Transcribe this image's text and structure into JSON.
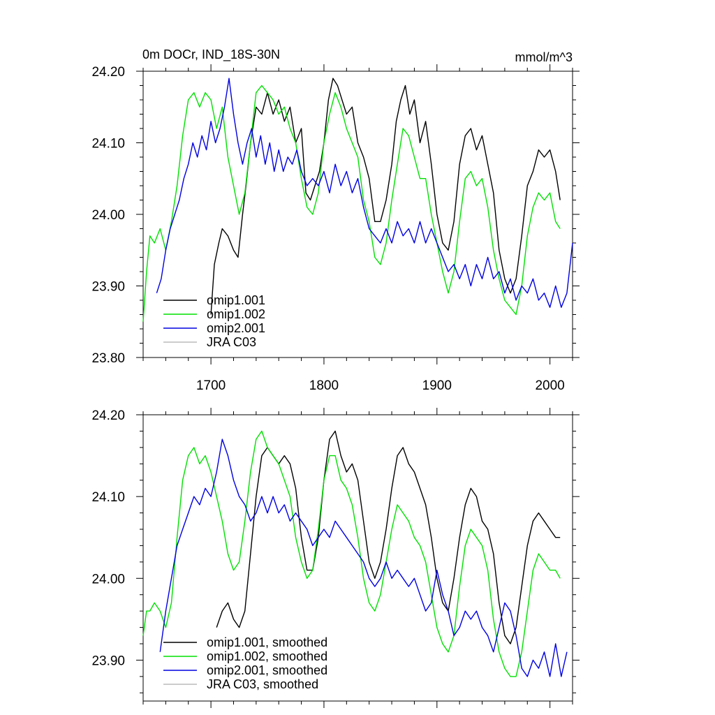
{
  "chart_data": [
    {
      "type": "line",
      "title_left": "0m DOCr, IND_18S-30N",
      "title_right": "mmol/m^3",
      "xlim": [
        1640,
        2020
      ],
      "ylim": [
        23.8,
        24.2
      ],
      "x_ticks": [
        1700,
        1800,
        1900,
        2000
      ],
      "x_tick_labels": [
        "1700",
        "1800",
        "1900",
        "2000"
      ],
      "y_ticks": [
        23.8,
        23.9,
        24.0,
        24.1,
        24.2
      ],
      "y_tick_labels": [
        "23.80",
        "23.90",
        "24.00",
        "24.10",
        "24.20"
      ],
      "legend": [
        "omip1.001",
        "omip1.002",
        "omip2.001",
        "JRA C03"
      ],
      "series": [
        {
          "name": "omip1.001",
          "color": "#000000",
          "x": [
            1700,
            1703,
            1707,
            1710,
            1715,
            1720,
            1724,
            1728,
            1731,
            1735,
            1740,
            1745,
            1750,
            1755,
            1760,
            1765,
            1770,
            1775,
            1780,
            1784,
            1788,
            1792,
            1796,
            1800,
            1804,
            1808,
            1812,
            1816,
            1820,
            1825,
            1830,
            1835,
            1840,
            1845,
            1850,
            1855,
            1860,
            1864,
            1868,
            1872,
            1876,
            1880,
            1885,
            1890,
            1895,
            1900,
            1905,
            1910,
            1915,
            1920,
            1925,
            1930,
            1935,
            1940,
            1945,
            1950,
            1955,
            1960,
            1965,
            1970,
            1975,
            1980,
            1985,
            1990,
            1995,
            2000,
            2005,
            2009
          ],
          "y": [
            23.86,
            23.93,
            23.96,
            23.98,
            23.97,
            23.95,
            23.94,
            24.0,
            24.04,
            24.1,
            24.15,
            24.14,
            24.17,
            24.14,
            24.16,
            24.13,
            24.15,
            24.1,
            24.12,
            24.03,
            24.02,
            24.04,
            24.06,
            24.1,
            24.16,
            24.19,
            24.18,
            24.16,
            24.14,
            24.15,
            24.1,
            24.08,
            24.05,
            23.99,
            23.99,
            24.02,
            24.07,
            24.13,
            24.16,
            24.18,
            24.14,
            24.16,
            24.1,
            24.13,
            24.07,
            24.0,
            23.96,
            23.95,
            23.99,
            24.07,
            24.11,
            24.12,
            24.09,
            24.11,
            24.07,
            24.03,
            23.95,
            23.91,
            23.89,
            23.91,
            23.97,
            24.04,
            24.06,
            24.09,
            24.08,
            24.09,
            24.06,
            24.02
          ]
        },
        {
          "name": "omip1.002",
          "color": "#00e000",
          "x": [
            1640,
            1643,
            1646,
            1650,
            1655,
            1660,
            1665,
            1670,
            1675,
            1680,
            1685,
            1690,
            1695,
            1700,
            1705,
            1710,
            1715,
            1720,
            1725,
            1730,
            1735,
            1740,
            1745,
            1750,
            1755,
            1760,
            1765,
            1770,
            1775,
            1780,
            1785,
            1790,
            1795,
            1800,
            1805,
            1810,
            1815,
            1820,
            1825,
            1830,
            1835,
            1840,
            1845,
            1850,
            1855,
            1860,
            1865,
            1870,
            1875,
            1880,
            1885,
            1890,
            1895,
            1900,
            1905,
            1910,
            1915,
            1920,
            1925,
            1930,
            1935,
            1940,
            1945,
            1950,
            1955,
            1960,
            1965,
            1970,
            1975,
            1980,
            1985,
            1990,
            1995,
            2000,
            2005,
            2009
          ],
          "y": [
            23.85,
            23.92,
            23.97,
            23.96,
            23.98,
            23.95,
            23.99,
            24.04,
            24.11,
            24.16,
            24.17,
            24.15,
            24.17,
            24.16,
            24.12,
            24.15,
            24.08,
            24.04,
            24.0,
            24.03,
            24.1,
            24.17,
            24.18,
            24.17,
            24.16,
            24.14,
            24.15,
            24.12,
            24.1,
            24.05,
            24.01,
            24.0,
            24.03,
            24.1,
            24.14,
            24.17,
            24.15,
            24.12,
            24.1,
            24.08,
            24.02,
            23.99,
            23.94,
            23.93,
            23.96,
            24.02,
            24.07,
            24.12,
            24.11,
            24.08,
            24.05,
            24.05,
            24.0,
            23.96,
            23.92,
            23.89,
            23.92,
            23.99,
            24.05,
            24.06,
            24.04,
            24.05,
            24.01,
            23.95,
            23.91,
            23.88,
            23.87,
            23.86,
            23.9,
            23.97,
            24.01,
            24.03,
            24.02,
            24.03,
            23.99,
            23.98
          ]
        },
        {
          "name": "omip2.001",
          "color": "#0000e0",
          "x": [
            1652,
            1656,
            1660,
            1664,
            1668,
            1672,
            1676,
            1680,
            1684,
            1688,
            1692,
            1696,
            1700,
            1704,
            1708,
            1712,
            1716,
            1720,
            1724,
            1728,
            1732,
            1736,
            1740,
            1744,
            1748,
            1752,
            1756,
            1760,
            1764,
            1768,
            1772,
            1776,
            1780,
            1785,
            1790,
            1795,
            1800,
            1805,
            1810,
            1815,
            1820,
            1825,
            1830,
            1835,
            1840,
            1845,
            1850,
            1855,
            1860,
            1865,
            1870,
            1875,
            1880,
            1885,
            1890,
            1895,
            1900,
            1905,
            1910,
            1915,
            1920,
            1925,
            1930,
            1935,
            1940,
            1945,
            1950,
            1955,
            1960,
            1965,
            1970,
            1975,
            1980,
            1985,
            1990,
            1995,
            2000,
            2005,
            2010,
            2015,
            2020
          ],
          "y": [
            23.89,
            23.91,
            23.95,
            23.98,
            24.0,
            24.02,
            24.05,
            24.07,
            24.1,
            24.08,
            24.11,
            24.09,
            24.13,
            24.1,
            24.12,
            24.15,
            24.19,
            24.14,
            24.1,
            24.07,
            24.1,
            24.12,
            24.08,
            24.11,
            24.07,
            24.1,
            24.06,
            24.09,
            24.06,
            24.08,
            24.07,
            24.09,
            24.06,
            24.04,
            24.05,
            24.04,
            24.06,
            24.03,
            24.07,
            24.04,
            24.06,
            24.03,
            24.05,
            24.01,
            23.98,
            23.97,
            23.96,
            23.98,
            23.96,
            23.99,
            23.97,
            23.98,
            23.96,
            23.99,
            23.96,
            23.98,
            23.96,
            23.94,
            23.92,
            23.93,
            23.91,
            23.93,
            23.9,
            23.93,
            23.91,
            23.94,
            23.91,
            23.92,
            23.89,
            23.91,
            23.88,
            23.9,
            23.89,
            23.91,
            23.88,
            23.89,
            23.87,
            23.9,
            23.87,
            23.89,
            23.96
          ]
        },
        {
          "name": "JRA C03",
          "color": "#bbbbbb",
          "x": [],
          "y": []
        }
      ]
    },
    {
      "type": "line",
      "xlim": [
        1640,
        2020
      ],
      "ylim": [
        23.85,
        24.2
      ],
      "x_ticks": [
        1700,
        1800,
        1900,
        2000
      ],
      "y_ticks": [
        23.9,
        24.0,
        24.1,
        24.2
      ],
      "y_tick_labels": [
        "23.90",
        "24.00",
        "24.10",
        "24.20"
      ],
      "legend": [
        "omip1.001, smoothed",
        "omip1.002, smoothed",
        "omip2.001, smoothed",
        "JRA C03, smoothed"
      ],
      "series": [
        {
          "name": "omip1.001, smoothed",
          "color": "#000000",
          "x": [
            1705,
            1710,
            1715,
            1720,
            1725,
            1730,
            1735,
            1740,
            1745,
            1750,
            1755,
            1760,
            1765,
            1770,
            1775,
            1780,
            1785,
            1790,
            1795,
            1800,
            1805,
            1810,
            1815,
            1820,
            1825,
            1830,
            1835,
            1840,
            1845,
            1850,
            1855,
            1860,
            1865,
            1870,
            1875,
            1880,
            1885,
            1890,
            1895,
            1900,
            1905,
            1910,
            1915,
            1920,
            1925,
            1930,
            1935,
            1940,
            1945,
            1950,
            1955,
            1960,
            1965,
            1970,
            1975,
            1980,
            1985,
            1990,
            1995,
            2000,
            2005,
            2009
          ],
          "y": [
            23.94,
            23.96,
            23.97,
            23.95,
            23.94,
            23.96,
            24.03,
            24.1,
            24.15,
            24.16,
            24.15,
            24.14,
            24.15,
            24.14,
            24.11,
            24.05,
            24.01,
            24.01,
            24.05,
            24.12,
            24.17,
            24.18,
            24.15,
            24.13,
            24.14,
            24.12,
            24.07,
            24.02,
            24.0,
            24.02,
            24.06,
            24.11,
            24.15,
            24.16,
            24.14,
            24.13,
            24.11,
            24.09,
            24.05,
            24.0,
            23.97,
            23.96,
            24.0,
            24.05,
            24.09,
            24.11,
            24.1,
            24.07,
            24.06,
            24.03,
            23.97,
            23.93,
            23.92,
            23.94,
            23.99,
            24.04,
            24.07,
            24.08,
            24.07,
            24.06,
            24.05,
            24.05
          ]
        },
        {
          "name": "omip1.002, smoothed",
          "color": "#00e000",
          "x": [
            1640,
            1643,
            1646,
            1650,
            1655,
            1660,
            1665,
            1670,
            1675,
            1680,
            1685,
            1690,
            1695,
            1700,
            1705,
            1710,
            1715,
            1720,
            1725,
            1730,
            1735,
            1740,
            1745,
            1750,
            1755,
            1760,
            1765,
            1770,
            1775,
            1780,
            1785,
            1790,
            1795,
            1800,
            1805,
            1810,
            1815,
            1820,
            1825,
            1830,
            1835,
            1840,
            1845,
            1850,
            1855,
            1860,
            1865,
            1870,
            1875,
            1880,
            1885,
            1890,
            1895,
            1900,
            1905,
            1910,
            1915,
            1920,
            1925,
            1930,
            1935,
            1940,
            1945,
            1950,
            1955,
            1960,
            1965,
            1970,
            1975,
            1980,
            1985,
            1990,
            1995,
            2000,
            2005,
            2009
          ],
          "y": [
            23.93,
            23.96,
            23.96,
            23.97,
            23.96,
            23.94,
            23.97,
            24.05,
            24.12,
            24.15,
            24.16,
            24.14,
            24.15,
            24.13,
            24.1,
            24.07,
            24.03,
            24.01,
            24.02,
            24.07,
            24.13,
            24.17,
            24.18,
            24.16,
            24.15,
            24.14,
            24.12,
            24.1,
            24.05,
            24.02,
            24.0,
            24.01,
            24.06,
            24.12,
            24.15,
            24.15,
            24.12,
            24.11,
            24.09,
            24.05,
            24.0,
            23.97,
            23.96,
            23.98,
            24.02,
            24.06,
            24.09,
            24.08,
            24.07,
            24.05,
            24.04,
            24.02,
            23.98,
            23.94,
            23.92,
            23.91,
            23.93,
            23.99,
            24.04,
            24.06,
            24.05,
            24.04,
            24.01,
            23.95,
            23.91,
            23.89,
            23.88,
            23.88,
            23.91,
            23.96,
            24.01,
            24.03,
            24.02,
            24.01,
            24.01,
            24.0
          ]
        },
        {
          "name": "omip2.001, smoothed",
          "color": "#0000e0",
          "x": [
            1655,
            1660,
            1665,
            1670,
            1675,
            1680,
            1685,
            1690,
            1695,
            1700,
            1705,
            1710,
            1715,
            1720,
            1725,
            1730,
            1735,
            1740,
            1745,
            1750,
            1755,
            1760,
            1765,
            1770,
            1775,
            1780,
            1785,
            1790,
            1795,
            1800,
            1805,
            1810,
            1815,
            1820,
            1825,
            1830,
            1835,
            1840,
            1845,
            1850,
            1855,
            1860,
            1865,
            1870,
            1875,
            1880,
            1885,
            1890,
            1895,
            1900,
            1905,
            1910,
            1915,
            1920,
            1925,
            1930,
            1935,
            1940,
            1945,
            1950,
            1955,
            1960,
            1965,
            1970,
            1975,
            1980,
            1985,
            1990,
            1995,
            2000,
            2005,
            2010,
            2015
          ],
          "y": [
            23.91,
            23.96,
            24.0,
            24.04,
            24.06,
            24.08,
            24.1,
            24.09,
            24.11,
            24.1,
            24.13,
            24.17,
            24.15,
            24.12,
            24.1,
            24.09,
            24.07,
            24.08,
            24.1,
            24.08,
            24.1,
            24.08,
            24.09,
            24.07,
            24.08,
            24.07,
            24.06,
            24.04,
            24.05,
            24.06,
            24.05,
            24.07,
            24.06,
            24.05,
            24.04,
            24.03,
            24.02,
            24.0,
            23.99,
            24.0,
            24.02,
            24.0,
            24.01,
            24.0,
            23.99,
            24.0,
            23.98,
            23.96,
            23.97,
            24.01,
            23.98,
            23.96,
            23.93,
            23.94,
            23.96,
            23.95,
            23.96,
            23.94,
            23.93,
            23.91,
            23.94,
            23.97,
            23.96,
            23.93,
            23.89,
            23.88,
            23.9,
            23.89,
            23.91,
            23.88,
            23.92,
            23.88,
            23.91
          ]
        },
        {
          "name": "JRA C03, smoothed",
          "color": "#bbbbbb",
          "x": [],
          "y": []
        }
      ]
    }
  ]
}
